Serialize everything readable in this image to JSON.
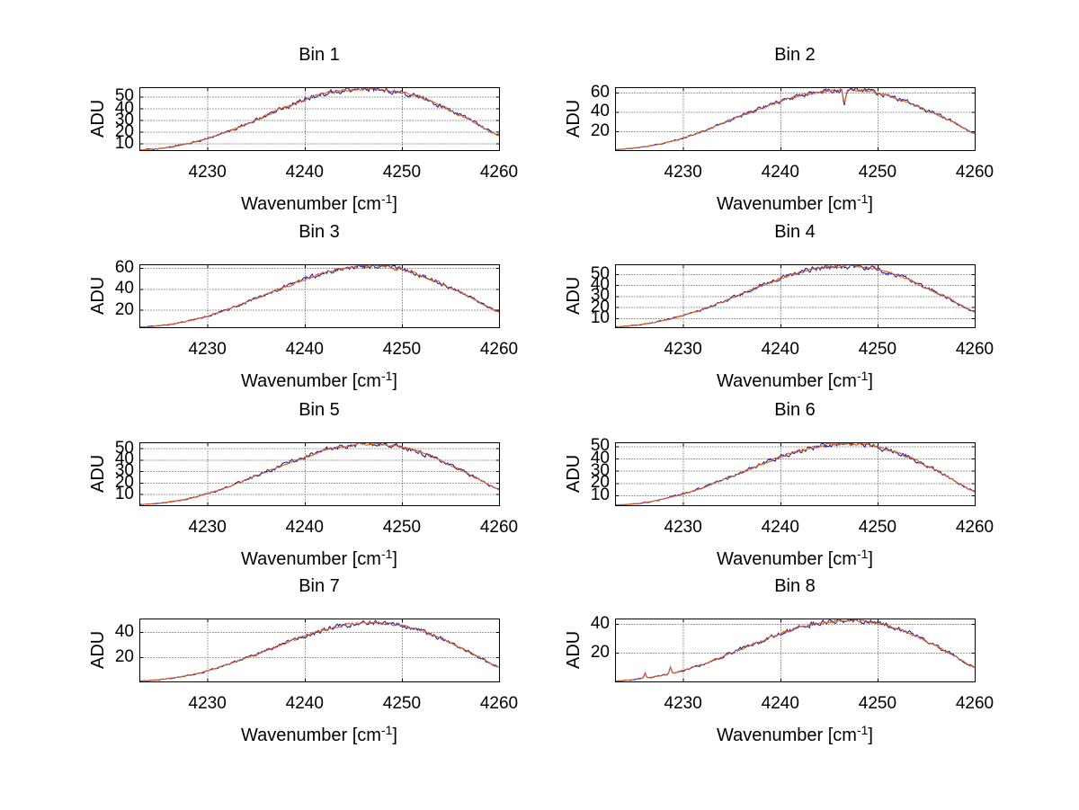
{
  "figure": {
    "background": "#ffffff",
    "text_color": "#000000",
    "grid_color": "#404040",
    "line_color": "#db5f1d",
    "underlay_line_color": "#2222aa"
  },
  "axis": {
    "ylabel": "ADU",
    "xlabel_prefix": "Wavenumber [cm",
    "xlabel_superscript": "-1",
    "xlabel_suffix": "]",
    "xlim": [
      4223,
      4260
    ],
    "xticks": [
      4230,
      4240,
      4250,
      4260
    ],
    "grid": true,
    "grid_style": "dotted"
  },
  "chart_data": [
    {
      "type": "line",
      "title": "Bin 1",
      "ylabel": "ADU",
      "ylim": [
        4.4,
        58
      ],
      "yticks": [
        10,
        20,
        30,
        40,
        50
      ],
      "x_samples": [
        4223,
        4226,
        4229,
        4232,
        4235,
        4238,
        4241,
        4243,
        4245,
        4247,
        4249,
        4251,
        4253,
        4255,
        4257.5,
        4260
      ],
      "adu_samples": [
        4.5,
        7,
        12,
        20,
        30,
        41,
        50,
        54,
        56,
        56.5,
        55,
        51.5,
        46,
        38,
        28,
        17
      ],
      "artifacts": []
    },
    {
      "type": "line",
      "title": "Bin 2",
      "ylabel": "ADU",
      "ylim": [
        0.5,
        65.5
      ],
      "yticks": [
        20,
        40,
        60
      ],
      "x_samples": [
        4223,
        4226,
        4229,
        4232,
        4235,
        4238,
        4241,
        4243,
        4245,
        4247,
        4249,
        4251,
        4253,
        4255,
        4257.5,
        4260
      ],
      "adu_samples": [
        1,
        4,
        10,
        20,
        32,
        44,
        54,
        59,
        62,
        63,
        61.5,
        57,
        50,
        41.5,
        31,
        18
      ],
      "artifacts": [
        {
          "kind": "dip",
          "x": 4246.6,
          "amplitude": 14,
          "width": 0.18
        }
      ]
    },
    {
      "type": "line",
      "title": "Bin 3",
      "ylabel": "ADU",
      "ylim": [
        3.4,
        63.5
      ],
      "yticks": [
        20,
        40,
        60
      ],
      "x_samples": [
        4223,
        4226,
        4229,
        4232,
        4235,
        4238,
        4241,
        4243,
        4245,
        4247,
        4249,
        4251,
        4253,
        4255,
        4257.5,
        4260
      ],
      "adu_samples": [
        3.5,
        6,
        11.5,
        20,
        31,
        42,
        52,
        58,
        61,
        62,
        60,
        56,
        49,
        41,
        30,
        18
      ],
      "artifacts": []
    },
    {
      "type": "line",
      "title": "Bin 4",
      "ylabel": "ADU",
      "ylim": [
        1.7,
        59
      ],
      "yticks": [
        10,
        20,
        30,
        40,
        50
      ],
      "x_samples": [
        4223,
        4226,
        4229,
        4232,
        4235,
        4238,
        4241,
        4243,
        4245,
        4247,
        4249,
        4251,
        4253,
        4255,
        4257.5,
        4260
      ],
      "adu_samples": [
        2,
        4.5,
        10,
        18,
        28.5,
        39,
        49,
        54,
        56.5,
        57.5,
        56,
        52,
        46,
        37.5,
        27,
        16
      ],
      "artifacts": []
    },
    {
      "type": "line",
      "title": "Bin 5",
      "ylabel": "ADU",
      "ylim": [
        0.3,
        55.2
      ],
      "yticks": [
        10,
        20,
        30,
        40,
        50
      ],
      "x_samples": [
        4223,
        4226,
        4229,
        4232,
        4235,
        4238,
        4241,
        4243,
        4245,
        4247,
        4249,
        4251,
        4253,
        4255,
        4257.5,
        4260
      ],
      "adu_samples": [
        0.8,
        3,
        8,
        16,
        26,
        36,
        45,
        50,
        52.5,
        54,
        52.5,
        49,
        43,
        35,
        25,
        14
      ],
      "artifacts": []
    },
    {
      "type": "line",
      "title": "Bin 6",
      "ylabel": "ADU",
      "ylim": [
        1.8,
        53.3
      ],
      "yticks": [
        10,
        20,
        30,
        40,
        50
      ],
      "x_samples": [
        4223,
        4226,
        4229,
        4232,
        4235,
        4238,
        4241,
        4243,
        4245,
        4247,
        4249,
        4251,
        4253,
        4255,
        4257.5,
        4260
      ],
      "adu_samples": [
        2,
        4,
        9,
        16,
        25.5,
        35,
        44,
        48.5,
        51,
        52.3,
        51,
        47.5,
        42,
        34,
        24,
        13
      ],
      "artifacts": []
    },
    {
      "type": "line",
      "title": "Bin 7",
      "ylabel": "ADU",
      "ylim": [
        0.7,
        50.5
      ],
      "yticks": [
        20,
        40
      ],
      "x_samples": [
        4223,
        4226,
        4229,
        4232,
        4235,
        4238,
        4241,
        4243,
        4245,
        4247,
        4249,
        4251,
        4253,
        4255,
        4257.5,
        4260
      ],
      "adu_samples": [
        1,
        3,
        7,
        14,
        22,
        31,
        39,
        43.5,
        46,
        47.5,
        46,
        43,
        38,
        31,
        22,
        12
      ],
      "artifacts": []
    },
    {
      "type": "line",
      "title": "Bin 8",
      "ylabel": "ADU",
      "ylim": [
        0.2,
        43.8
      ],
      "yticks": [
        20,
        40
      ],
      "x_samples": [
        4223,
        4226,
        4229,
        4232,
        4235,
        4238,
        4241,
        4243,
        4245,
        4247,
        4249,
        4251,
        4253,
        4255,
        4257.5,
        4260
      ],
      "adu_samples": [
        0.5,
        2.5,
        6,
        12,
        20,
        28,
        35.5,
        39.5,
        41.5,
        42.8,
        41.5,
        39,
        34.5,
        28,
        19.5,
        10
      ],
      "artifacts": [
        {
          "kind": "spike",
          "x": 4226.1,
          "amplitude": 3.5,
          "width": 0.12
        },
        {
          "kind": "spike",
          "x": 4228.7,
          "amplitude": 4.5,
          "width": 0.15
        }
      ]
    }
  ]
}
